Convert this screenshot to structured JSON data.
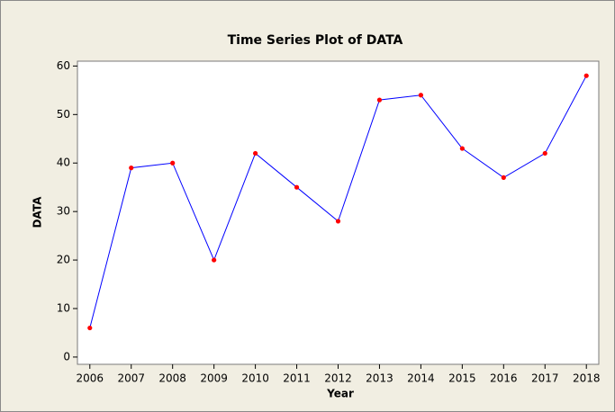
{
  "chart_data": {
    "type": "line",
    "title": "Time Series Plot of DATA",
    "x_label": "Year",
    "y_label": "DATA",
    "x": [
      2006,
      2007,
      2008,
      2009,
      2010,
      2011,
      2012,
      2013,
      2014,
      2015,
      2016,
      2017,
      2018
    ],
    "series": [
      {
        "name": "DATA",
        "color": "#0000ff",
        "marker_color": "#ff0000",
        "values": [
          6,
          39,
          40,
          20,
          42,
          35,
          28,
          53,
          54,
          43,
          37,
          42,
          58
        ]
      }
    ],
    "xlim": [
      2005.7,
      2018.3
    ],
    "xticks": [
      2006,
      2007,
      2008,
      2009,
      2010,
      2011,
      2012,
      2013,
      2014,
      2015,
      2016,
      2017,
      2018
    ],
    "ylim": [
      -1.5,
      61
    ],
    "yticks": [
      0,
      10,
      20,
      30,
      40,
      50,
      60
    ],
    "grid": false
  }
}
